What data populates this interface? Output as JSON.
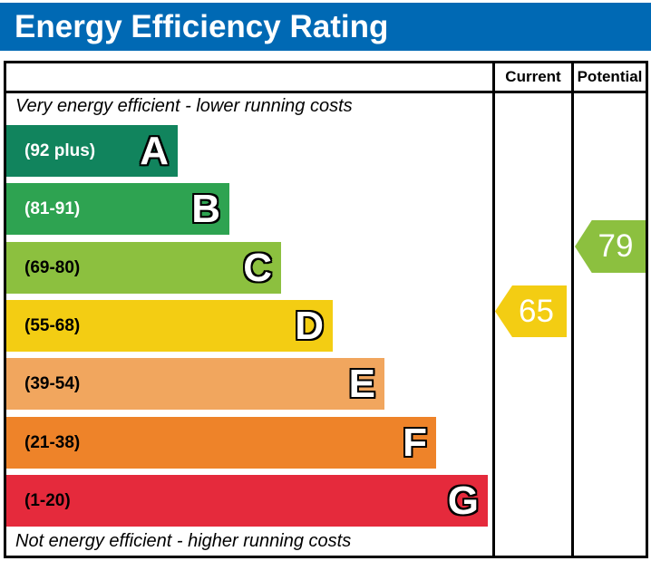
{
  "header": {
    "title": "Energy Efficiency Rating",
    "bg_color": "#0069b4"
  },
  "table": {
    "current_label": "Current",
    "potential_label": "Potential"
  },
  "notes": {
    "top": "Very energy efficient - lower running costs",
    "bottom": "Not energy efficient - higher running costs"
  },
  "bands": [
    {
      "letter": "A",
      "range": "(92 plus)",
      "color": "#11845d",
      "label_color": "#ffffff"
    },
    {
      "letter": "B",
      "range": "(81-91)",
      "color": "#2ea351",
      "label_color": "#ffffff"
    },
    {
      "letter": "C",
      "range": "(69-80)",
      "color": "#8cc03f",
      "label_color": "#000000"
    },
    {
      "letter": "D",
      "range": "(55-68)",
      "color": "#f3cd13",
      "label_color": "#000000"
    },
    {
      "letter": "E",
      "range": "(39-54)",
      "color": "#f1a65e",
      "label_color": "#000000"
    },
    {
      "letter": "F",
      "range": "(21-38)",
      "color": "#ee8329",
      "label_color": "#000000"
    },
    {
      "letter": "G",
      "range": "(1-20)",
      "color": "#e52a3c",
      "label_color": "#000000"
    }
  ],
  "ratings": {
    "current": {
      "value": "65",
      "color": "#f3cd13"
    },
    "potential": {
      "value": "79",
      "color": "#8cc03f"
    }
  },
  "chart_data": {
    "type": "bar",
    "title": "Energy Efficiency Rating",
    "orientation": "horizontal",
    "categories": [
      "A",
      "B",
      "C",
      "D",
      "E",
      "F",
      "G"
    ],
    "band_ranges": [
      "92 plus",
      "81-91",
      "69-80",
      "55-68",
      "39-54",
      "21-38",
      "1-20"
    ],
    "band_colors": [
      "#11845d",
      "#2ea351",
      "#8cc03f",
      "#f3cd13",
      "#f1a65e",
      "#ee8329",
      "#e52a3c"
    ],
    "value_scale": [
      1,
      100
    ],
    "columns": [
      "Current",
      "Potential"
    ],
    "current_rating": 65,
    "current_band": "D",
    "potential_rating": 79,
    "potential_band": "C",
    "annotations": [
      "Very energy efficient - lower running costs",
      "Not energy efficient - higher running costs"
    ]
  }
}
